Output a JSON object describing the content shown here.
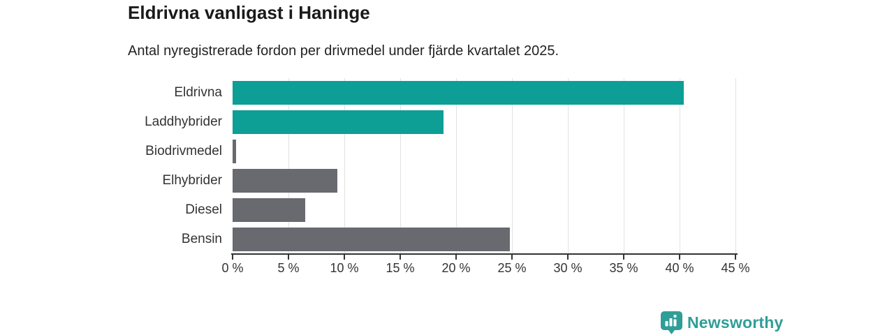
{
  "title": "Eldrivna vanligast i Haninge",
  "subtitle": "Antal nyregistrerade fordon per drivmedel under fjärde kvartalet 2025.",
  "chart_data": {
    "type": "bar",
    "orientation": "horizontal",
    "title": "Eldrivna vanligast i Haninge",
    "subtitle": "Antal nyregistrerade fordon per drivmedel under fjärde kvartalet 2025.",
    "categories": [
      "Eldrivna",
      "Laddhybrider",
      "Biodrivmedel",
      "Elhybrider",
      "Diesel",
      "Bensin"
    ],
    "values": [
      40.4,
      18.9,
      0.3,
      9.4,
      6.5,
      24.8
    ],
    "unit": "%",
    "bar_colors": [
      "#0d9e96",
      "#0d9e96",
      "#696a70",
      "#696a70",
      "#696a70",
      "#696a70"
    ],
    "xlim": [
      0,
      45
    ],
    "x_ticks": [
      0,
      5,
      10,
      15,
      20,
      25,
      30,
      35,
      40,
      45
    ],
    "x_tick_labels": [
      "0 %",
      "5 %",
      "10 %",
      "15 %",
      "20 %",
      "25 %",
      "30 %",
      "35 %",
      "40 %",
      "45 %"
    ],
    "grid": true,
    "legend_position": "none"
  },
  "colors": {
    "accent_teal": "#0d9e96",
    "neutral_gray": "#696a70",
    "gridline": "#e2e2e2",
    "axis": "#333333",
    "text": "#333333",
    "logo_teal": "#2f9e97"
  },
  "branding": {
    "wordmark": "Newsworthy",
    "icon": "bar-chart-speech-bubble-icon"
  }
}
